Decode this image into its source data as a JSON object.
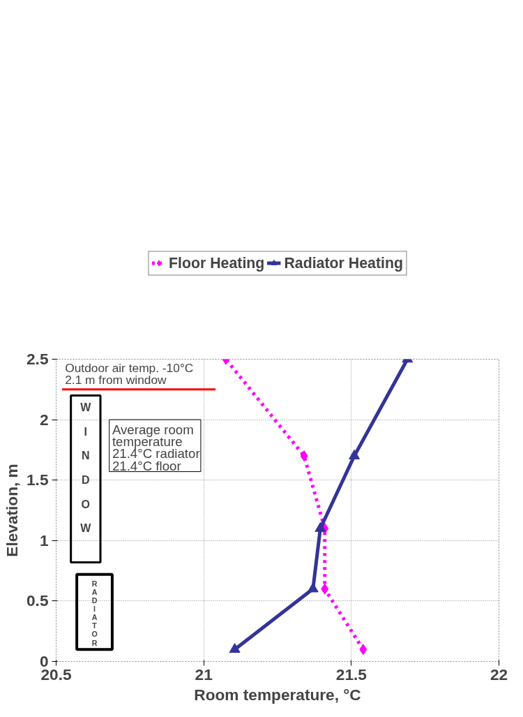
{
  "chart_data": {
    "type": "line",
    "xlabel": "Room temperature, °C",
    "ylabel": "Elevation, m",
    "series": [
      {
        "name": "Floor Heating",
        "color": "#ff00ff",
        "line_style": "dotted",
        "marker": "diamond",
        "x": [
          21.54,
          21.41,
          21.41,
          21.34,
          21.075
        ],
        "values": [
          0.1,
          0.6,
          1.1,
          1.7,
          2.5
        ]
      },
      {
        "name": "Radiator Heating",
        "color": "#333399",
        "line_style": "solid",
        "marker": "triangle",
        "x": [
          21.105,
          21.37,
          21.395,
          21.51,
          21.69
        ],
        "values": [
          0.1,
          0.6,
          1.1,
          1.7,
          2.5
        ]
      }
    ],
    "xlim": [
      20.5,
      22
    ],
    "xticks": [
      20.5,
      21,
      21.5,
      22
    ],
    "ylim": [
      0,
      2.5
    ],
    "yticks": [
      0,
      0.5,
      1,
      1.5,
      2,
      2.5
    ],
    "grid": true,
    "legend": "top",
    "annotations": [
      "Outdoor air temp. -10°C",
      "2.1 m from window",
      "WINDOW",
      "RADIATOR",
      "Average room\ntemperature",
      "21.4°C  radiator",
      "21.4°C  floor"
    ]
  }
}
